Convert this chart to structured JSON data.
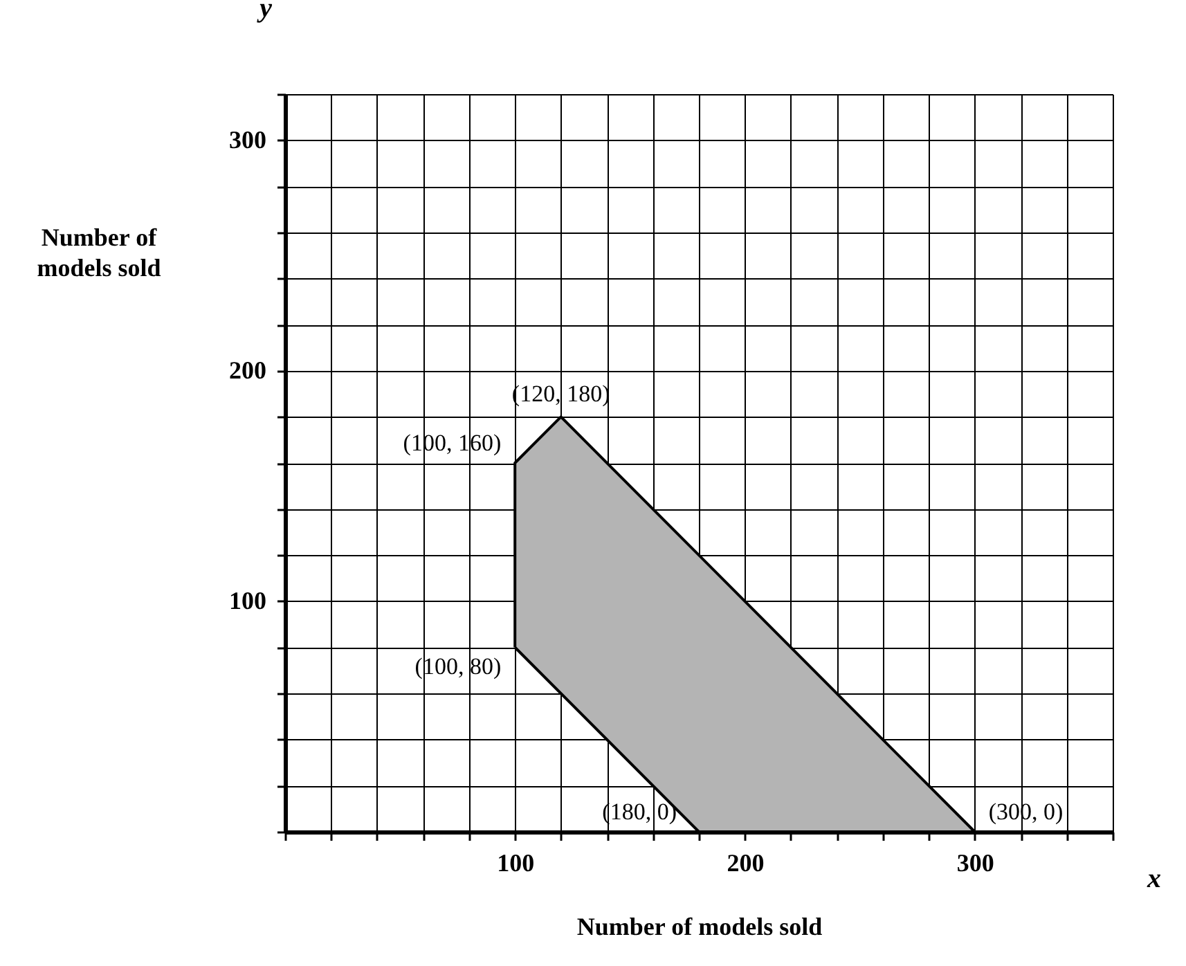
{
  "chart_data": {
    "type": "area",
    "xlabel": "Number of models sold",
    "ylabel": "Number of models sold",
    "series": [
      {
        "color": "#b4b4b4",
        "x": [
          100,
          100,
          120,
          300,
          180,
          100
        ],
        "values": [
          80,
          160,
          180,
          0,
          0,
          80
        ]
      }
    ],
    "xlim": [
      0,
      360
    ],
    "ylim": [
      0,
      320
    ],
    "xticks": [
      {
        "value": 0,
        "label": null
      },
      {
        "value": 20,
        "label": null
      },
      {
        "value": 40,
        "label": null
      },
      {
        "value": 60,
        "label": null
      },
      {
        "value": 80,
        "label": null
      },
      100,
      {
        "value": 120,
        "label": null
      },
      {
        "value": 140,
        "label": null
      },
      {
        "value": 160,
        "label": null
      },
      {
        "value": 180,
        "label": null
      },
      200,
      {
        "value": 220,
        "label": null
      },
      {
        "value": 240,
        "label": null
      },
      {
        "value": 260,
        "label": null
      },
      {
        "value": 280,
        "label": null
      },
      300,
      {
        "value": 320,
        "label": null
      },
      {
        "value": 340,
        "label": null
      },
      {
        "value": 360,
        "label": null
      }
    ],
    "yticks": [
      {
        "value": 0,
        "label": null
      },
      {
        "value": 20,
        "label": null
      },
      {
        "value": 40,
        "label": null
      },
      {
        "value": 60,
        "label": null
      },
      {
        "value": 80,
        "label": null
      },
      100,
      {
        "value": 120,
        "label": null
      },
      {
        "value": 140,
        "label": null
      },
      {
        "value": 160,
        "label": null
      },
      {
        "value": 180,
        "label": null
      },
      200,
      {
        "value": 220,
        "label": null
      },
      {
        "value": 240,
        "label": null
      },
      {
        "value": 260,
        "label": null
      },
      {
        "value": 280,
        "label": null
      },
      300,
      {
        "value": 320,
        "label": null
      }
    ],
    "grid": true,
    "annotations": [
      {
        "text": "(120, 180)",
        "x": 120,
        "y": 180
      },
      {
        "text": "(100, 160)",
        "x": 100,
        "y": 160
      },
      {
        "text": "(100, 80)",
        "x": 100,
        "y": 80
      },
      {
        "text": "(180, 0)",
        "x": 180,
        "y": 0
      },
      {
        "text": "(300, 0)",
        "x": 300,
        "y": 0
      },
      "x",
      "y"
    ]
  }
}
